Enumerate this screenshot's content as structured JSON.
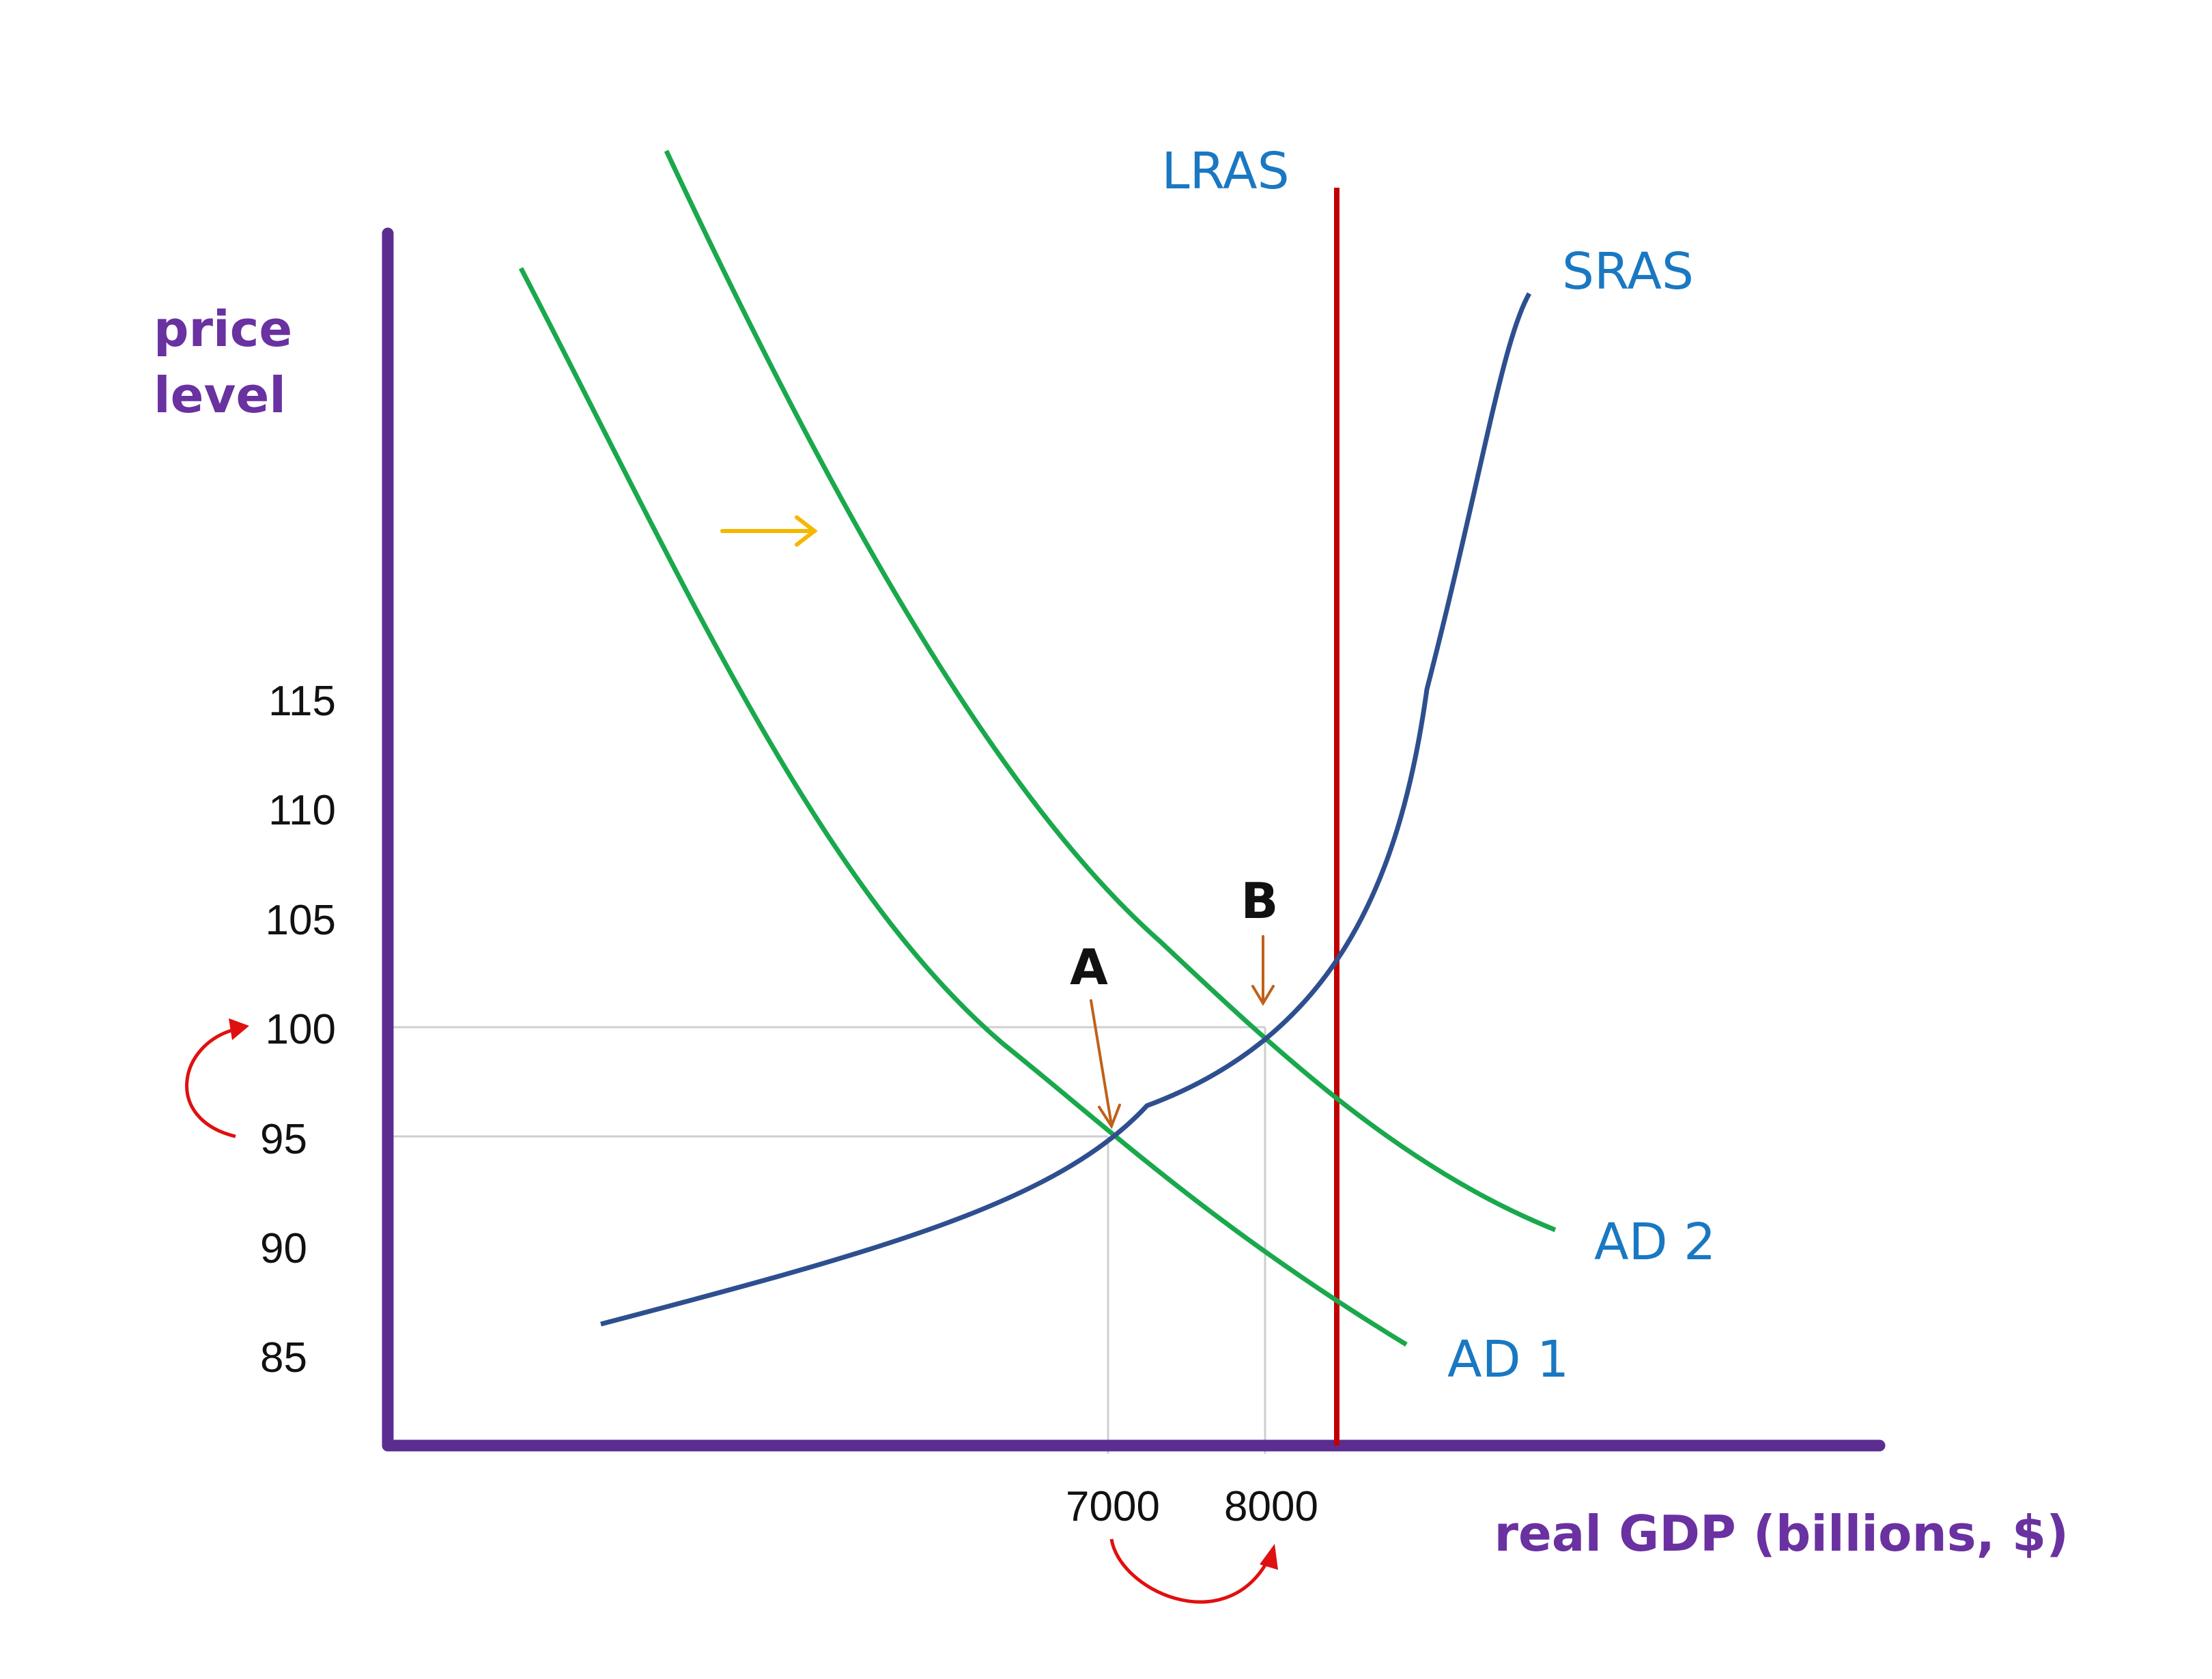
{
  "chart_data": {
    "type": "line",
    "title": "",
    "ylabel": [
      "price",
      "level"
    ],
    "xlabel": "real GDP (billions, $)",
    "y_ticks": [
      "115",
      "110",
      "105",
      "100",
      "95",
      "90",
      "85"
    ],
    "x_ticks": [
      "7000",
      "8000"
    ],
    "guides": {
      "price_levels": [
        100,
        95
      ],
      "gdp_levels": [
        7000,
        8000
      ]
    },
    "curves": [
      {
        "name": "LRAS",
        "type": "vertical",
        "x": 8500,
        "color": "#c00000"
      },
      {
        "name": "SRAS",
        "color": "#2e4f8f",
        "points": [
          [
            6400,
            86.5
          ],
          [
            7000,
            95
          ],
          [
            7600,
            97.5
          ],
          [
            8000,
            100
          ],
          [
            8500,
            104.5
          ],
          [
            9000,
            125
          ],
          [
            9400,
            147
          ]
        ]
      },
      {
        "name": "AD 1",
        "color": "#1aa84c",
        "points": [
          [
            4900,
            142
          ],
          [
            6000,
            117
          ],
          [
            6300,
            110
          ],
          [
            7000,
            95
          ],
          [
            7900,
            89
          ],
          [
            8500,
            86.5
          ],
          [
            9000,
            85
          ]
        ]
      },
      {
        "name": "AD 2",
        "color": "#1aa84c",
        "points": [
          [
            5800,
            147
          ],
          [
            7000,
            118
          ],
          [
            8000,
            100
          ],
          [
            8500,
            97
          ],
          [
            9500,
            91
          ]
        ]
      }
    ],
    "points": [
      {
        "label": "A",
        "x": 7000,
        "y": 95
      },
      {
        "label": "B",
        "x": 8000,
        "y": 100
      }
    ],
    "annotations": {
      "shift_arrow_color": "#f5b800",
      "movement_arrow_color": "#e01010",
      "pointer_arrow_color": "#c0601a"
    },
    "axis_color": "#5b2d91"
  }
}
